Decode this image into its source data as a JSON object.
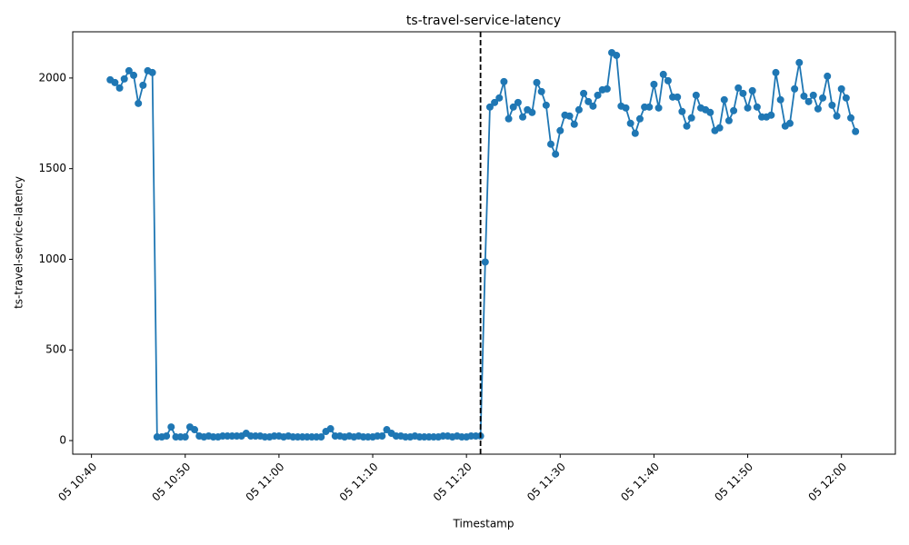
{
  "chart_data": {
    "type": "line",
    "title": "ts-travel-service-latency",
    "x_label": "Timestamp",
    "y_label": "ts-travel-service-latency",
    "x": [
      "05 10:42:00",
      "05 10:42:30",
      "05 10:43:00",
      "05 10:43:30",
      "05 10:44:00",
      "05 10:44:30",
      "05 10:45:00",
      "05 10:45:30",
      "05 10:46:00",
      "05 10:46:30",
      "05 10:47:00",
      "05 10:47:30",
      "05 10:48:00",
      "05 10:48:30",
      "05 10:49:00",
      "05 10:49:30",
      "05 10:50:00",
      "05 10:50:30",
      "05 10:51:00",
      "05 10:51:30",
      "05 10:52:00",
      "05 10:52:30",
      "05 10:53:00",
      "05 10:53:30",
      "05 10:54:00",
      "05 10:54:30",
      "05 10:55:00",
      "05 10:55:30",
      "05 10:56:00",
      "05 10:56:30",
      "05 10:57:00",
      "05 10:57:30",
      "05 10:58:00",
      "05 10:58:30",
      "05 10:59:00",
      "05 10:59:30",
      "05 11:00:00",
      "05 11:00:30",
      "05 11:01:00",
      "05 11:01:30",
      "05 11:02:00",
      "05 11:02:30",
      "05 11:03:00",
      "05 11:03:30",
      "05 11:04:00",
      "05 11:04:30",
      "05 11:05:00",
      "05 11:05:30",
      "05 11:06:00",
      "05 11:06:30",
      "05 11:07:00",
      "05 11:07:30",
      "05 11:08:00",
      "05 11:08:30",
      "05 11:09:00",
      "05 11:09:30",
      "05 11:10:00",
      "05 11:10:30",
      "05 11:11:00",
      "05 11:11:30",
      "05 11:12:00",
      "05 11:12:30",
      "05 11:13:00",
      "05 11:13:30",
      "05 11:14:00",
      "05 11:14:30",
      "05 11:15:00",
      "05 11:15:30",
      "05 11:16:00",
      "05 11:16:30",
      "05 11:17:00",
      "05 11:17:30",
      "05 11:18:00",
      "05 11:18:30",
      "05 11:19:00",
      "05 11:19:30",
      "05 11:20:00",
      "05 11:20:30",
      "05 11:21:00",
      "05 11:21:30",
      "05 11:22:00",
      "05 11:22:30",
      "05 11:23:00",
      "05 11:23:30",
      "05 11:24:00",
      "05 11:24:30",
      "05 11:25:00",
      "05 11:25:30",
      "05 11:26:00",
      "05 11:26:30",
      "05 11:27:00",
      "05 11:27:30",
      "05 11:28:00",
      "05 11:28:30",
      "05 11:29:00",
      "05 11:29:30",
      "05 11:30:00",
      "05 11:30:30",
      "05 11:31:00",
      "05 11:31:30",
      "05 11:32:00",
      "05 11:32:30",
      "05 11:33:00",
      "05 11:33:30",
      "05 11:34:00",
      "05 11:34:30",
      "05 11:35:00",
      "05 11:35:30",
      "05 11:36:00",
      "05 11:36:30",
      "05 11:37:00",
      "05 11:37:30",
      "05 11:38:00",
      "05 11:38:30",
      "05 11:39:00",
      "05 11:39:30",
      "05 11:40:00",
      "05 11:40:30",
      "05 11:41:00",
      "05 11:41:30",
      "05 11:42:00",
      "05 11:42:30",
      "05 11:43:00",
      "05 11:43:30",
      "05 11:44:00",
      "05 11:44:30",
      "05 11:45:00",
      "05 11:45:30",
      "05 11:46:00",
      "05 11:46:30",
      "05 11:47:00",
      "05 11:47:30",
      "05 11:48:00",
      "05 11:48:30",
      "05 11:49:00",
      "05 11:49:30",
      "05 11:50:00",
      "05 11:50:30",
      "05 11:51:00",
      "05 11:51:30",
      "05 11:52:00",
      "05 11:52:30",
      "05 11:53:00",
      "05 11:53:30",
      "05 11:54:00",
      "05 11:54:30",
      "05 11:55:00",
      "05 11:55:30",
      "05 11:56:00",
      "05 11:56:30",
      "05 11:57:00",
      "05 11:57:30",
      "05 11:58:00",
      "05 11:58:30",
      "05 11:59:00",
      "05 11:59:30",
      "05 12:00:00",
      "05 12:00:30",
      "05 12:01:00",
      "05 12:01:30"
    ],
    "series": [
      {
        "name": "ts-travel-service-latency",
        "color": "#1f77b4",
        "values": [
          1990,
          1975,
          1945,
          1995,
          2040,
          2015,
          1860,
          1960,
          2040,
          2030,
          20,
          20,
          25,
          75,
          20,
          20,
          20,
          75,
          60,
          25,
          20,
          25,
          20,
          20,
          25,
          25,
          25,
          25,
          25,
          40,
          25,
          25,
          25,
          20,
          20,
          25,
          25,
          20,
          25,
          20,
          20,
          20,
          20,
          20,
          20,
          20,
          50,
          65,
          25,
          25,
          20,
          25,
          20,
          25,
          20,
          20,
          20,
          25,
          25,
          60,
          40,
          25,
          25,
          20,
          20,
          25,
          20,
          20,
          20,
          20,
          20,
          25,
          25,
          20,
          25,
          20,
          20,
          25,
          25,
          25,
          985,
          1840,
          1865,
          1890,
          1980,
          1775,
          1840,
          1865,
          1785,
          1825,
          1810,
          1975,
          1925,
          1850,
          1635,
          1580,
          1710,
          1795,
          1790,
          1745,
          1825,
          1915,
          1870,
          1845,
          1905,
          1935,
          1940,
          2140,
          2125,
          1845,
          1835,
          1750,
          1695,
          1775,
          1840,
          1840,
          1965,
          1835,
          2020,
          1985,
          1895,
          1895,
          1815,
          1735,
          1780,
          1905,
          1835,
          1825,
          1810,
          1710,
          1725,
          1880,
          1765,
          1820,
          1945,
          1915,
          1835,
          1930,
          1840,
          1785,
          1785,
          1795,
          2030,
          1880,
          1735,
          1750,
          1940,
          2085,
          1900,
          1870,
          1905,
          1830,
          1890,
          2010,
          1850,
          1790,
          1940,
          1890,
          1780,
          1705
        ]
      }
    ],
    "xlim": [
      "05 10:38:00",
      "05 12:05:45"
    ],
    "xticks": [
      "05 10:40",
      "05 10:50",
      "05 11:00",
      "05 11:10",
      "05 11:20",
      "05 11:30",
      "05 11:40",
      "05 11:50",
      "05 12:00"
    ],
    "ylim": [
      -75,
      2255
    ],
    "yticks": [
      0,
      500,
      1000,
      1500,
      2000
    ],
    "vline": "05 11:21:30",
    "vline_color": "#000000",
    "grid": false
  }
}
